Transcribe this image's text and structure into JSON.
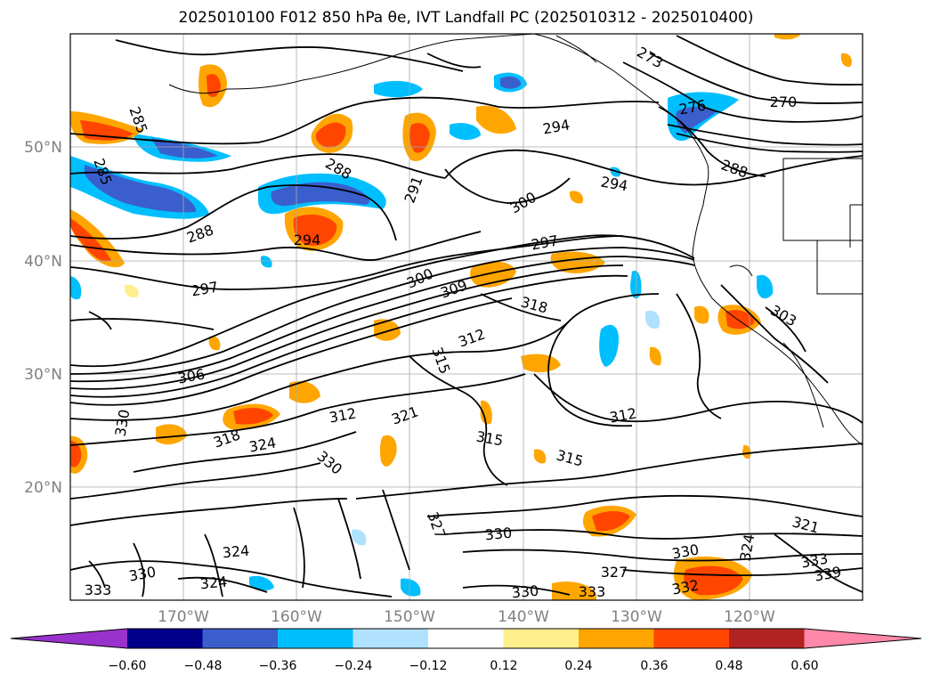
{
  "title": "2025010100 F012 850 hPa θe, IVT Landfall PC (2025010312 - 2025010400)",
  "map": {
    "lat_ticks": [
      "50°N",
      "40°N",
      "30°N",
      "20°N"
    ],
    "lon_ticks": [
      "170°W",
      "160°W",
      "150°W",
      "140°W",
      "130°W",
      "120°W"
    ]
  },
  "contour_labels": [
    "294",
    "273",
    "276",
    "270",
    "285",
    "285",
    "288",
    "291",
    "294",
    "300",
    "288",
    "294",
    "288",
    "297",
    "297",
    "300",
    "309",
    "318",
    "303",
    "312",
    "315",
    "306",
    "312",
    "321",
    "318",
    "324",
    "312",
    "315",
    "315",
    "330",
    "330",
    "327",
    "330",
    "330",
    "324",
    "324",
    "321",
    "327",
    "330",
    "333",
    "330",
    "333",
    "332",
    "339",
    "324",
    "333"
  ],
  "colorbar": {
    "ticks": [
      "−0.60",
      "−0.48",
      "−0.36",
      "−0.24",
      "−0.12",
      "0.12",
      "0.24",
      "0.36",
      "0.48",
      "0.60"
    ],
    "colors": [
      "#9932cc",
      "#00008b",
      "#3a5fcd",
      "#00bfff",
      "#b0e2ff",
      "#ffffff",
      "#ffee8c",
      "#ffa500",
      "#ff4500",
      "#b22222",
      "#ff88aa"
    ]
  }
}
